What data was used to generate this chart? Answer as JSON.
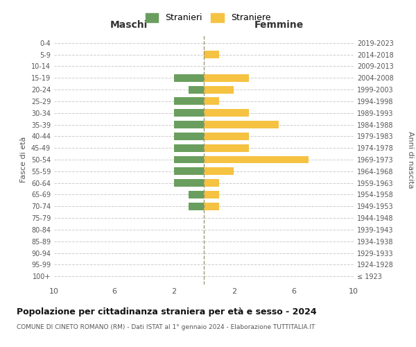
{
  "age_groups": [
    "100+",
    "95-99",
    "90-94",
    "85-89",
    "80-84",
    "75-79",
    "70-74",
    "65-69",
    "60-64",
    "55-59",
    "50-54",
    "45-49",
    "40-44",
    "35-39",
    "30-34",
    "25-29",
    "20-24",
    "15-19",
    "10-14",
    "5-9",
    "0-4"
  ],
  "birth_years": [
    "≤ 1923",
    "1924-1928",
    "1929-1933",
    "1934-1938",
    "1939-1943",
    "1944-1948",
    "1949-1953",
    "1954-1958",
    "1959-1963",
    "1964-1968",
    "1969-1973",
    "1974-1978",
    "1979-1983",
    "1984-1988",
    "1989-1993",
    "1994-1998",
    "1999-2003",
    "2004-2008",
    "2009-2013",
    "2014-2018",
    "2019-2023"
  ],
  "maschi": [
    0,
    0,
    0,
    0,
    0,
    0,
    1,
    1,
    2,
    2,
    2,
    2,
    2,
    2,
    2,
    2,
    1,
    2,
    0,
    0,
    0
  ],
  "femmine": [
    0,
    0,
    0,
    0,
    0,
    0,
    1,
    1,
    1,
    2,
    7,
    3,
    3,
    5,
    3,
    1,
    2,
    3,
    0,
    1,
    0
  ],
  "color_maschi": "#6a9e5e",
  "color_femmine": "#f5c242",
  "title": "Popolazione per cittadinanza straniera per età e sesso - 2024",
  "subtitle": "COMUNE DI CINETO ROMANO (RM) - Dati ISTAT al 1° gennaio 2024 - Elaborazione TUTTITALIA.IT",
  "legend_maschi": "Stranieri",
  "legend_femmine": "Straniere",
  "xlabel_left": "Maschi",
  "xlabel_right": "Femmine",
  "ylabel_left": "Fasce di età",
  "ylabel_right": "Anni di nascita",
  "grid_color": "#cccccc",
  "center_line_color": "#999977",
  "text_color": "#555555",
  "title_color": "#111111"
}
